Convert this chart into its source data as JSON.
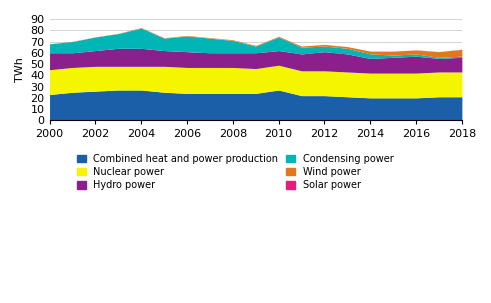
{
  "years": [
    2000,
    2001,
    2002,
    2003,
    2004,
    2005,
    2006,
    2007,
    2008,
    2009,
    2010,
    2011,
    2012,
    2013,
    2014,
    2015,
    2016,
    2017,
    2018
  ],
  "combined_heat": [
    23,
    25,
    26,
    27,
    27,
    25,
    24,
    24,
    24,
    24,
    27,
    22,
    22,
    21,
    20,
    20,
    20,
    21,
    21
  ],
  "nuclear": [
    22,
    22,
    22,
    21,
    21,
    23,
    23,
    23,
    23,
    22,
    22,
    22,
    22,
    22,
    22,
    22,
    22,
    22,
    22
  ],
  "hydro": [
    15,
    13,
    14,
    16,
    16,
    14,
    14,
    13,
    13,
    14,
    13,
    15,
    17,
    16,
    13,
    14,
    15,
    12,
    13
  ],
  "condensing": [
    8,
    10,
    12,
    13,
    18,
    11,
    14,
    13,
    11,
    6,
    12,
    6,
    5,
    5,
    4,
    2,
    2,
    1,
    1
  ],
  "wind": [
    0.1,
    0.2,
    0.2,
    0.3,
    0.4,
    0.4,
    0.4,
    0.5,
    0.6,
    0.6,
    0.7,
    1.0,
    1.5,
    1.5,
    2.5,
    3.5,
    3.5,
    5.0,
    6.0
  ],
  "solar": [
    0,
    0,
    0,
    0,
    0,
    0,
    0,
    0,
    0,
    0,
    0,
    0,
    0,
    0,
    0,
    0,
    0.1,
    0.1,
    0.2
  ],
  "colors": {
    "combined_heat": "#1a5fa8",
    "nuclear": "#f5f500",
    "hydro": "#8b1f8b",
    "condensing": "#00b5b5",
    "wind": "#e07820",
    "solar": "#e0207a"
  },
  "ylabel": "TWh",
  "ylim": [
    0,
    90
  ],
  "yticks": [
    0,
    10,
    20,
    30,
    40,
    50,
    60,
    70,
    80,
    90
  ],
  "xlim": [
    2000,
    2018
  ],
  "legend_order": [
    "combined_heat",
    "nuclear",
    "hydro",
    "condensing",
    "wind",
    "solar"
  ],
  "legend_labels": [
    "Combined heat and power production",
    "Nuclear power",
    "Hydro power",
    "Condensing power",
    "Wind power",
    "Solar power"
  ],
  "legend_colors": [
    "#1a5fa8",
    "#f5f500",
    "#8b1f8b",
    "#00b5b5",
    "#e07820",
    "#e0207a"
  ],
  "background_color": "#ffffff",
  "grid_color": "#cccccc"
}
